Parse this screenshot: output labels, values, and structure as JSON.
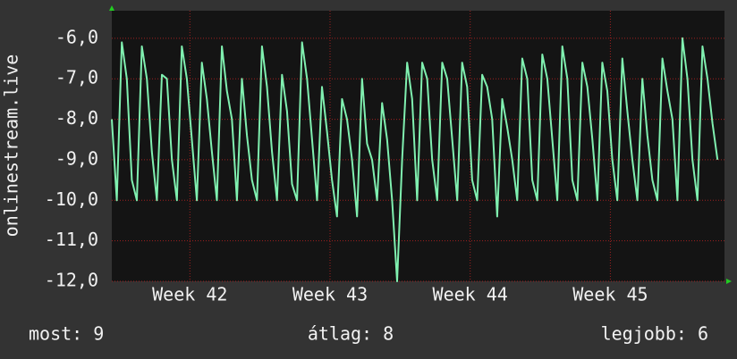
{
  "chart_data": {
    "type": "line",
    "ylabel": "onlinestream.live",
    "color": "#80f0b0",
    "x": [
      0,
      0.25,
      0.5,
      0.75,
      1,
      1.25,
      1.5,
      1.75,
      2,
      2.25,
      2.5,
      2.75,
      3,
      3.25,
      3.5,
      3.75,
      4,
      4.25,
      4.5,
      4.75,
      5,
      5.25,
      5.5,
      5.75,
      6,
      6.25,
      6.5,
      6.75,
      7,
      7.25,
      7.5,
      7.75,
      8,
      8.25,
      8.5,
      8.75,
      9,
      9.25,
      9.5,
      9.75,
      10,
      10.25,
      10.5,
      10.75,
      11,
      11.25,
      11.5,
      11.75,
      12,
      12.25,
      12.5,
      12.75,
      13,
      13.25,
      13.5,
      13.75,
      14,
      14.25,
      14.5,
      14.75,
      15,
      15.25,
      15.5,
      15.75,
      16,
      16.25,
      16.5,
      16.75,
      17,
      17.25,
      17.5,
      17.75,
      18,
      18.25,
      18.5,
      18.75,
      19,
      19.25,
      19.5,
      19.75,
      20,
      20.25,
      20.5,
      20.75,
      21,
      21.25,
      21.5,
      21.75,
      22,
      22.25,
      22.5,
      22.75,
      23,
      23.25,
      23.5,
      23.75,
      24,
      24.25,
      24.5,
      24.75,
      25,
      25.25,
      25.5,
      25.75,
      26,
      26.25,
      26.5,
      26.75,
      27,
      27.25,
      27.5,
      27.75,
      28,
      28.25,
      28.5,
      28.75,
      29,
      29.25,
      29.5,
      29.75,
      30,
      30.25
    ],
    "values": [
      -8.0,
      -10.0,
      -6.1,
      -7.0,
      -9.5,
      -10.0,
      -6.2,
      -7.0,
      -8.8,
      -10.0,
      -6.9,
      -7.0,
      -9.0,
      -10.0,
      -6.2,
      -7.0,
      -8.5,
      -10.0,
      -6.6,
      -7.5,
      -8.8,
      -10.0,
      -6.2,
      -7.3,
      -8.0,
      -10.0,
      -7.0,
      -8.4,
      -9.5,
      -10.0,
      -6.2,
      -7.2,
      -8.8,
      -10.0,
      -6.9,
      -7.8,
      -9.6,
      -10.0,
      -6.1,
      -7.0,
      -8.5,
      -10.0,
      -7.2,
      -8.3,
      -9.5,
      -10.4,
      -7.5,
      -8.0,
      -9.0,
      -10.4,
      -7.0,
      -8.6,
      -9.0,
      -10.0,
      -7.6,
      -8.5,
      -10.0,
      -12.0,
      -9.0,
      -6.6,
      -7.5,
      -10.0,
      -6.6,
      -7.0,
      -9.0,
      -10.0,
      -6.6,
      -7.0,
      -8.5,
      -10.0,
      -6.6,
      -7.2,
      -9.5,
      -10.0,
      -6.9,
      -7.2,
      -8.0,
      -10.4,
      -7.5,
      -8.2,
      -9.0,
      -10.0,
      -6.5,
      -7.0,
      -9.5,
      -10.0,
      -6.4,
      -7.0,
      -8.5,
      -10.0,
      -6.2,
      -7.0,
      -9.5,
      -10.0,
      -6.6,
      -7.2,
      -8.5,
      -10.0,
      -6.6,
      -7.3,
      -9.0,
      -10.0,
      -6.5,
      -7.8,
      -9.0,
      -10.0,
      -7.0,
      -8.4,
      -9.5,
      -10.0,
      -6.5,
      -7.3,
      -8.0,
      -10.0,
      -6.0,
      -7.0,
      -9.0,
      -10.0,
      -6.2,
      -7.0,
      -8.1,
      -9.0
    ],
    "xlim": [
      0,
      30.6
    ],
    "xticks": [
      {
        "value": 3.9,
        "label": "Week 42"
      },
      {
        "value": 10.9,
        "label": "Week 43"
      },
      {
        "value": 17.9,
        "label": "Week 44"
      },
      {
        "value": 24.9,
        "label": "Week 45"
      }
    ],
    "ylim": [
      -12,
      -5.32
    ],
    "yticks": [
      {
        "value": -12,
        "label": "-12,0"
      },
      {
        "value": -11,
        "label": "-11,0"
      },
      {
        "value": -10,
        "label": "-10,0"
      },
      {
        "value": -9,
        "label": "-9,0"
      },
      {
        "value": -8,
        "label": "-8,0"
      },
      {
        "value": -7,
        "label": "-7,0"
      },
      {
        "value": -6,
        "label": "-6,0"
      }
    ],
    "grid": true,
    "legend": {
      "now": "most: 9",
      "average": "átlag: 8",
      "best": "legjobb: 6"
    }
  }
}
